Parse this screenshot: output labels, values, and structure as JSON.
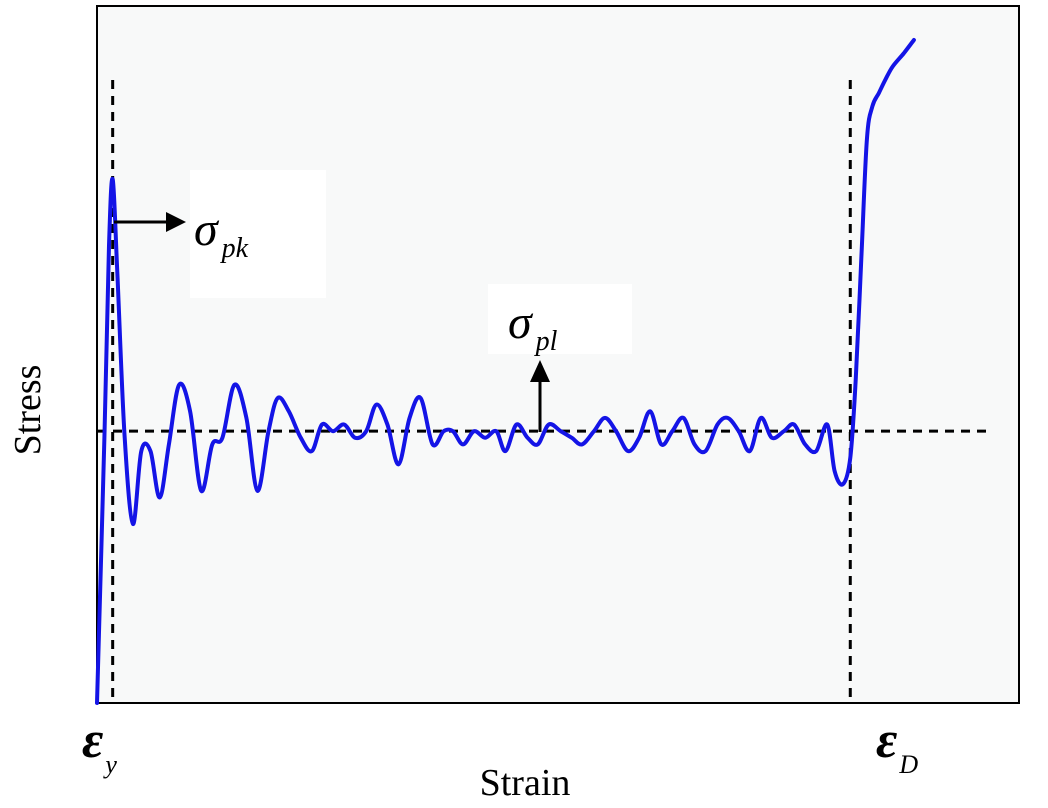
{
  "chart_data": {
    "type": "line",
    "title": "",
    "xlabel": "Strain",
    "ylabel": "Stress",
    "xlim": [
      0,
      100
    ],
    "ylim": [
      0,
      100
    ],
    "grid": false,
    "series": [
      {
        "color": "#1414e6",
        "x": [
          0,
          0.8,
          1.3,
          1.7,
          2.2,
          3.0,
          3.9,
          4.8,
          5.8,
          6.8,
          7.8,
          8.9,
          10.1,
          11.3,
          12.5,
          13.6,
          14.9,
          16.2,
          17.4,
          18.6,
          19.6,
          20.8,
          22.1,
          23.3,
          24.4,
          25.6,
          26.8,
          28.0,
          29.2,
          30.3,
          31.5,
          32.7,
          33.9,
          35.1,
          36.4,
          37.6,
          38.6,
          39.7,
          40.9,
          42.1,
          43.3,
          44.3,
          45.5,
          46.7,
          47.8,
          49.0,
          50.3,
          51.5,
          52.6,
          53.9,
          55.1,
          56.3,
          57.6,
          58.8,
          60.0,
          61.2,
          62.4,
          63.6,
          64.8,
          66.0,
          67.3,
          68.4,
          69.6,
          70.8,
          72.0,
          73.2,
          74.5,
          75.6,
          76.8,
          78.0,
          79.2,
          80.0,
          80.9,
          81.7,
          82.3,
          82.9,
          83.5,
          84.1,
          84.8,
          85.5,
          86.3,
          87.5,
          88.6
        ],
        "y": [
          0,
          40,
          69,
          79,
          65,
          40,
          27,
          38,
          38,
          31,
          39,
          48,
          44,
          32,
          39,
          40,
          48,
          43,
          32,
          41,
          46,
          44,
          40,
          38,
          42,
          41,
          42,
          40,
          41,
          45,
          42,
          36,
          43,
          46,
          39,
          41,
          41,
          39,
          41,
          40,
          41,
          38,
          42,
          40,
          39,
          42,
          41,
          40,
          39,
          41,
          43,
          41,
          38,
          40,
          44,
          39,
          41,
          43,
          39,
          38,
          42,
          43,
          41,
          38,
          43,
          40,
          41,
          42,
          39,
          38,
          42,
          35,
          33,
          37,
          49,
          67,
          85,
          90,
          92,
          94,
          96,
          98,
          100
        ]
      }
    ],
    "reference_lines": {
      "plateau_stress_level": 41,
      "yield_strain": 1.7,
      "densification_strain": 81.7
    },
    "annotations": {
      "peak_symbol": "σ",
      "peak_subscript": "pk",
      "plateau_symbol": "σ",
      "plateau_subscript": "pl",
      "yield_symbol": "ε",
      "yield_subscript": "y",
      "densification_symbol": "ε",
      "densification_subscript": "D"
    }
  }
}
